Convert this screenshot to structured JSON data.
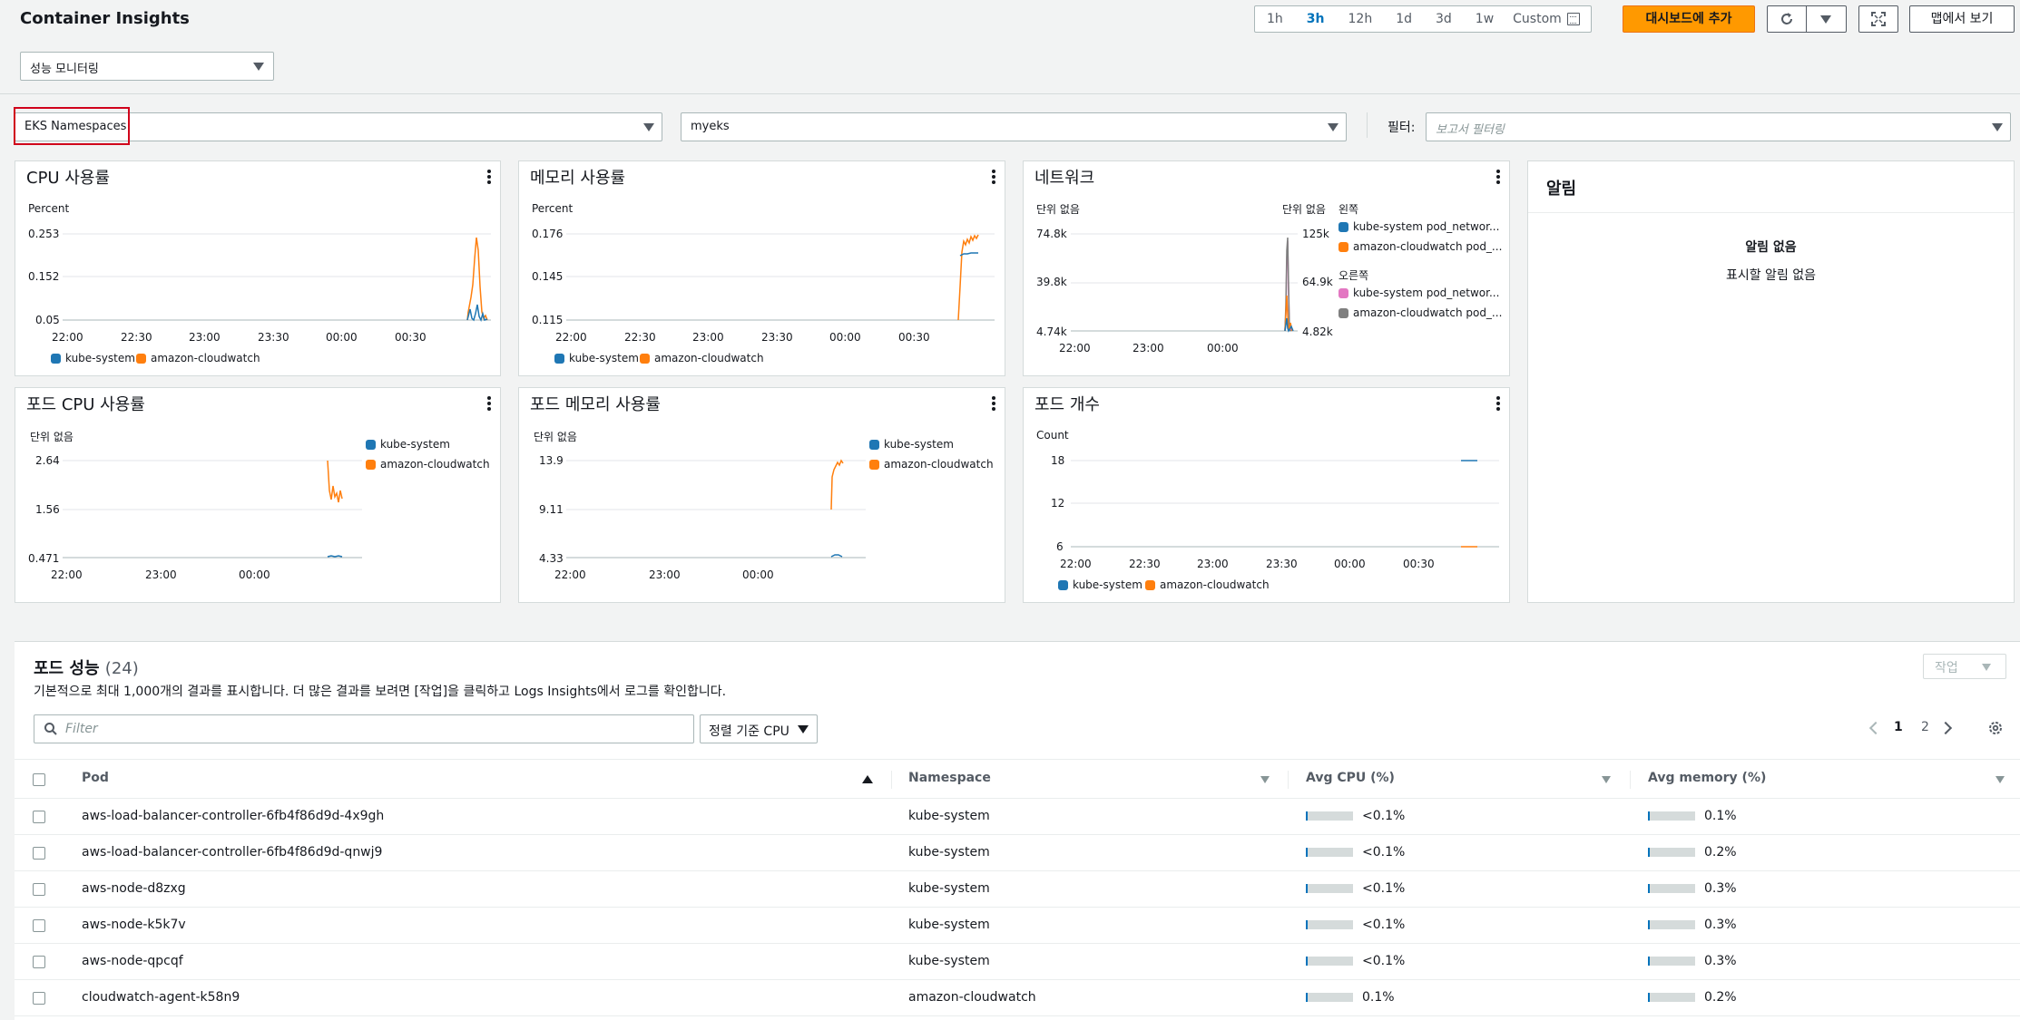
{
  "header": {
    "title": "Container Insights",
    "mode_select": "성능 모니터링",
    "time_ranges": [
      "1h",
      "3h",
      "12h",
      "1d",
      "3d",
      "1w"
    ],
    "active_range": "3h",
    "custom_label": "Custom",
    "add_dashboard_label": "대시보드에 추가",
    "map_view_label": "맵에서 보기"
  },
  "filters": {
    "resource_type": "EKS Namespaces",
    "cluster": "myeks",
    "filter_label": "필터:",
    "filter_placeholder": "보고서 필터링"
  },
  "colors": {
    "blue": "#1f77b4",
    "orange": "#ff7f0e",
    "pink": "#e377c2",
    "gray": "#7f7f7f",
    "accent": "#ff9900",
    "link": "#0073bb"
  },
  "widgets": {
    "cpu": {
      "title": "CPU 사용률",
      "unit": "Percent",
      "yticks": [
        "0.253",
        "0.152",
        "0.05"
      ],
      "xticks": [
        "22:00",
        "22:30",
        "23:00",
        "23:30",
        "00:00",
        "00:30"
      ],
      "legend": [
        "kube-system",
        "amazon-cloudwatch"
      ]
    },
    "memory": {
      "title": "메모리 사용률",
      "unit": "Percent",
      "yticks": [
        "0.176",
        "0.145",
        "0.115"
      ],
      "xticks": [
        "22:00",
        "22:30",
        "23:00",
        "23:30",
        "00:00",
        "00:30"
      ],
      "legend": [
        "kube-system",
        "amazon-cloudwatch"
      ]
    },
    "network": {
      "title": "네트워크",
      "unit_left": "단위 없음",
      "unit_right": "단위 없음",
      "yticks_left": [
        "74.8k",
        "39.8k",
        "4.74k"
      ],
      "yticks_right": [
        "125k",
        "64.9k",
        "4.82k"
      ],
      "xticks": [
        "22:00",
        "23:00",
        "00:00"
      ],
      "legend_left_title": "왼쪽",
      "legend_left": [
        "kube-system pod_networ...",
        "amazon-cloudwatch pod_..."
      ],
      "legend_right_title": "오른쪽",
      "legend_right": [
        "kube-system pod_networ...",
        "amazon-cloudwatch pod_..."
      ]
    },
    "pod_cpu": {
      "title": "포드 CPU 사용률",
      "unit": "단위 없음",
      "yticks": [
        "2.64",
        "1.56",
        "0.471"
      ],
      "xticks": [
        "22:00",
        "23:00",
        "00:00"
      ],
      "legend": [
        "kube-system",
        "amazon-cloudwatch"
      ]
    },
    "pod_memory": {
      "title": "포드 메모리 사용률",
      "unit": "단위 없음",
      "yticks": [
        "13.9",
        "9.11",
        "4.33"
      ],
      "xticks": [
        "22:00",
        "23:00",
        "00:00"
      ],
      "legend": [
        "kube-system",
        "amazon-cloudwatch"
      ]
    },
    "pod_count": {
      "title": "포드 개수",
      "unit": "Count",
      "yticks": [
        "18",
        "12",
        "6"
      ],
      "xticks": [
        "22:00",
        "22:30",
        "23:00",
        "23:30",
        "00:00",
        "00:30"
      ],
      "legend": [
        "kube-system",
        "amazon-cloudwatch"
      ]
    },
    "alarms": {
      "title": "알림",
      "none_title": "알림 없음",
      "none_desc": "표시할 알림 없음"
    }
  },
  "pod_table": {
    "title": "포드 성능",
    "count": "(24)",
    "description": "기본적으로 최대 1,000개의 결과를 표시합니다. 더 많은 결과를 보려면 [작업]을 클릭하고 Logs Insights에서 로그를 확인합니다.",
    "action_label": "작업",
    "search_placeholder": "Filter",
    "sort_label": "정렬 기준 CPU",
    "pages": [
      "1",
      "2"
    ],
    "columns": [
      "Pod",
      "Namespace",
      "Avg CPU (%)",
      "Avg memory (%)"
    ],
    "rows": [
      {
        "pod": "aws-load-balancer-controller-6fb4f86d9d-4x9gh",
        "namespace": "kube-system",
        "cpu": "<0.1%",
        "cpu_level": 0.04,
        "mem": "0.1%",
        "mem_level": 0.04
      },
      {
        "pod": "aws-load-balancer-controller-6fb4f86d9d-qnwj9",
        "namespace": "kube-system",
        "cpu": "<0.1%",
        "cpu_level": 0.04,
        "mem": "0.2%",
        "mem_level": 0.04
      },
      {
        "pod": "aws-node-d8zxg",
        "namespace": "kube-system",
        "cpu": "<0.1%",
        "cpu_level": 0.04,
        "mem": "0.3%",
        "mem_level": 0.04
      },
      {
        "pod": "aws-node-k5k7v",
        "namespace": "kube-system",
        "cpu": "<0.1%",
        "cpu_level": 0.04,
        "mem": "0.3%",
        "mem_level": 0.04
      },
      {
        "pod": "aws-node-qpcqf",
        "namespace": "kube-system",
        "cpu": "<0.1%",
        "cpu_level": 0.04,
        "mem": "0.3%",
        "mem_level": 0.04
      },
      {
        "pod": "cloudwatch-agent-k58n9",
        "namespace": "amazon-cloudwatch",
        "cpu": "0.1%",
        "cpu_level": 0.04,
        "mem": "0.2%",
        "mem_level": 0.04
      }
    ]
  }
}
